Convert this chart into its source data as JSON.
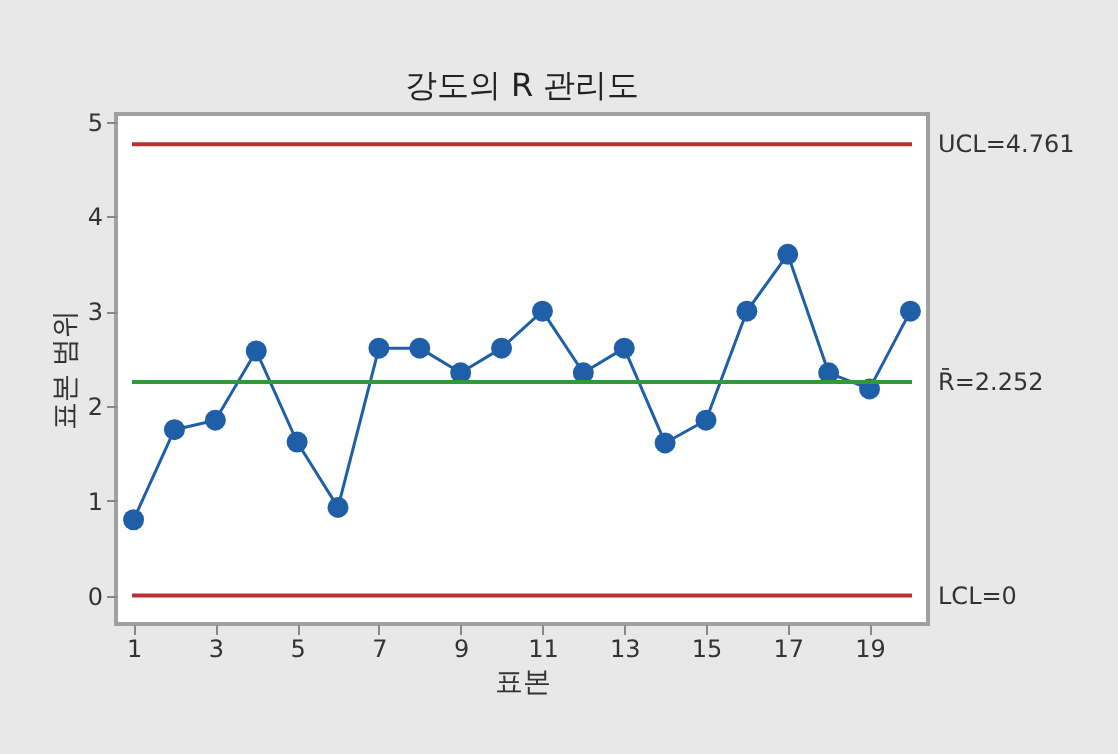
{
  "chart_data": {
    "type": "line",
    "title": "강도의 R 관리도",
    "xlabel": "표본",
    "ylabel": "표본 범위",
    "x": [
      1,
      2,
      3,
      4,
      5,
      6,
      7,
      8,
      9,
      10,
      11,
      12,
      13,
      14,
      15,
      16,
      17,
      18,
      19,
      20
    ],
    "series": [
      {
        "color": "#1f5fa8",
        "values": [
          0.8,
          1.75,
          1.85,
          2.58,
          1.62,
          0.93,
          2.61,
          2.61,
          2.35,
          2.61,
          3.0,
          2.35,
          2.61,
          1.61,
          1.85,
          3.0,
          3.6,
          2.35,
          2.18,
          3.0
        ]
      }
    ],
    "xlim": [
      0.57,
      20.43
    ],
    "xticks": [
      1,
      3,
      5,
      7,
      9,
      11,
      13,
      15,
      17,
      19
    ],
    "ylim": [
      -0.3,
      5.08
    ],
    "yticks": [
      0,
      1,
      2,
      3,
      4,
      5
    ],
    "ref_lines": [
      {
        "axis": "y",
        "value": 4.761,
        "label": "UCL=4.761",
        "color": "#b83232"
      },
      {
        "axis": "y",
        "value": 2.252,
        "label": "R̄=2.252",
        "color": "#2e9a3a"
      },
      {
        "axis": "y",
        "value": 0,
        "label": "LCL=0",
        "color": "#b83232"
      }
    ],
    "marker": "circle",
    "line_style": "solid",
    "grid": false
  }
}
